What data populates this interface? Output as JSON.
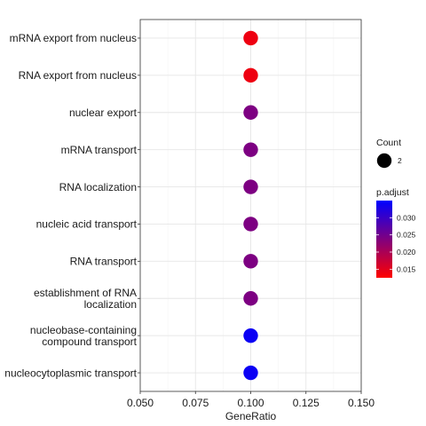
{
  "chart_data": {
    "type": "scatter",
    "title": "",
    "xlabel": "GeneRatio",
    "ylabel": "",
    "xlim": [
      0.05,
      0.15
    ],
    "x_ticks": [
      "0.050",
      "0.075",
      "0.100",
      "0.125",
      "0.150"
    ],
    "grid": true,
    "legend_position": "right",
    "categories": [
      "mRNA export from nucleus",
      "RNA export from nucleus",
      "nuclear export",
      "mRNA transport",
      "RNA localization",
      "nucleic acid transport",
      "RNA transport",
      "establishment of RNA\nlocalization",
      "nucleobase-containing\ncompound transport",
      "nucleocytoplasmic transport"
    ],
    "points": [
      {
        "term": "mRNA export from nucleus",
        "gene_ratio": 0.1,
        "count": 2,
        "p_adjust": 0.014
      },
      {
        "term": "RNA export from nucleus",
        "gene_ratio": 0.1,
        "count": 2,
        "p_adjust": 0.014
      },
      {
        "term": "nuclear export",
        "gene_ratio": 0.1,
        "count": 2,
        "p_adjust": 0.024
      },
      {
        "term": "mRNA transport",
        "gene_ratio": 0.1,
        "count": 2,
        "p_adjust": 0.024
      },
      {
        "term": "RNA localization",
        "gene_ratio": 0.1,
        "count": 2,
        "p_adjust": 0.024
      },
      {
        "term": "nucleic acid transport",
        "gene_ratio": 0.1,
        "count": 2,
        "p_adjust": 0.024
      },
      {
        "term": "RNA transport",
        "gene_ratio": 0.1,
        "count": 2,
        "p_adjust": 0.024
      },
      {
        "term": "establishment of RNA localization",
        "gene_ratio": 0.1,
        "count": 2,
        "p_adjust": 0.024
      },
      {
        "term": "nucleobase-containing compound transport",
        "gene_ratio": 0.1,
        "count": 2,
        "p_adjust": 0.034
      },
      {
        "term": "nucleocytoplasmic transport",
        "gene_ratio": 0.1,
        "count": 2,
        "p_adjust": 0.034
      }
    ],
    "legend": {
      "size_title": "Count",
      "size_entries": [
        {
          "label": "2",
          "value": 2
        }
      ],
      "color_title": "p.adjust",
      "color_range": [
        0.0125,
        0.035
      ],
      "color_ticks": [
        {
          "label": "0.030",
          "value": 0.03
        },
        {
          "label": "0.025",
          "value": 0.025
        },
        {
          "label": "0.020",
          "value": 0.02
        },
        {
          "label": "0.015",
          "value": 0.015
        }
      ],
      "color_low": "#ff0000",
      "color_high": "#0000ff"
    }
  }
}
